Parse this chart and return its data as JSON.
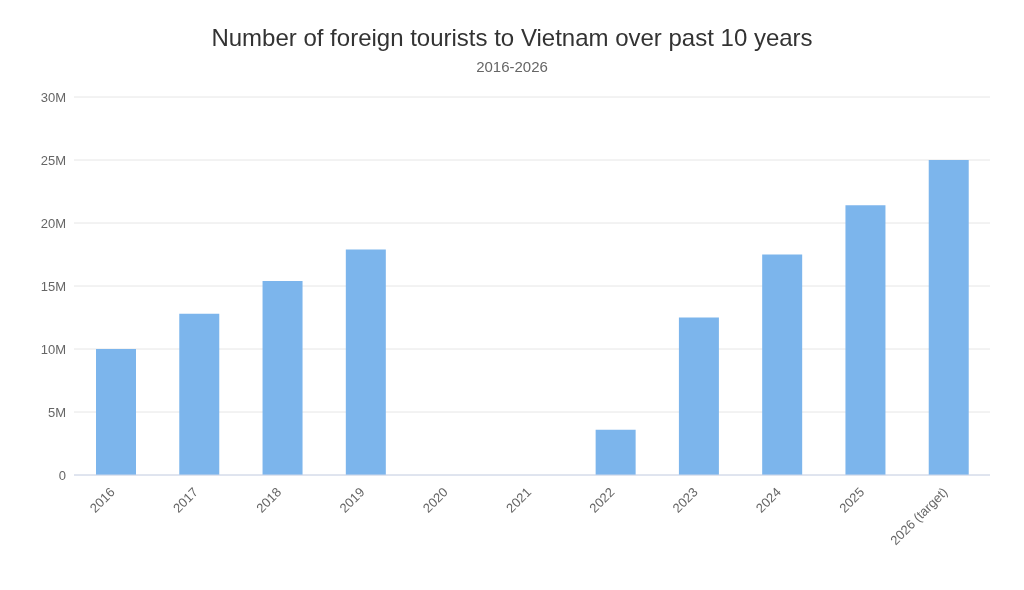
{
  "chart_data": {
    "type": "bar",
    "title": "Number of foreign tourists to Vietnam over past 10 years",
    "subtitle": "2016-2026",
    "categories": [
      "2016",
      "2017",
      "2018",
      "2019",
      "2020",
      "2021",
      "2022",
      "2023",
      "2024",
      "2025",
      "2026 (target)"
    ],
    "values": [
      10.0,
      12.8,
      15.4,
      17.9,
      0,
      0,
      3.6,
      12.5,
      17.5,
      21.4,
      25.0
    ],
    "color": "#7cb5ec",
    "ylim": [
      0,
      30
    ],
    "yticks": [
      {
        "value": 0,
        "label": "0"
      },
      {
        "value": 5,
        "label": "5M"
      },
      {
        "value": 10,
        "label": "10M"
      },
      {
        "value": 15,
        "label": "15M"
      },
      {
        "value": 20,
        "label": "20M"
      },
      {
        "value": 25,
        "label": "25M"
      },
      {
        "value": 30,
        "label": "30M"
      }
    ],
    "grid": "y"
  }
}
